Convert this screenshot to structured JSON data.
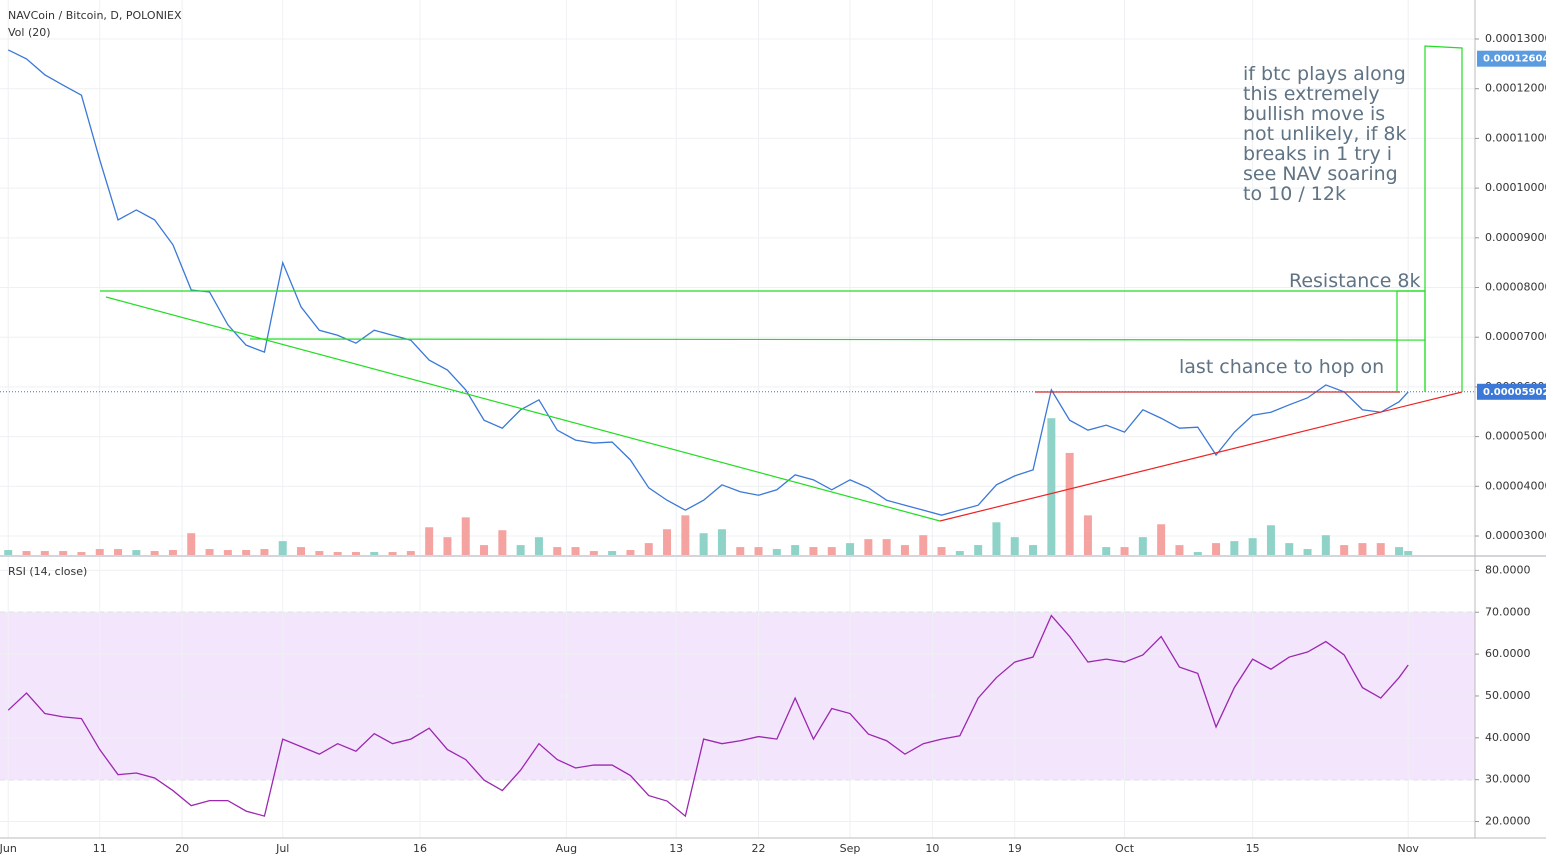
{
  "chart_data": [
    {
      "type": "line",
      "title": "NAVCoin / Bitcoin, D, POLONIEX",
      "color": "#3b78d8",
      "x": [
        0,
        2,
        4,
        6,
        8,
        10,
        12,
        14,
        16,
        18,
        20,
        22,
        24,
        26,
        28,
        30,
        32,
        34,
        36,
        38,
        40,
        42,
        44,
        46,
        48,
        50,
        52,
        54,
        56,
        58,
        60,
        62,
        64,
        66,
        68,
        70,
        72,
        74,
        76,
        78,
        80,
        82,
        84,
        86,
        88,
        90,
        92,
        94,
        96,
        98,
        100,
        102,
        104,
        106,
        108,
        110,
        112,
        114,
        116,
        118,
        120,
        122,
        124,
        126,
        128,
        130,
        132,
        134,
        136,
        138,
        140,
        142,
        144,
        146,
        148,
        150,
        152,
        153
      ],
      "values": [
        0.0001278,
        0.000126,
        0.0001228,
        0.0001207,
        0.0001187,
        0.0001057,
        9.36e-05,
        9.56e-05,
        9.36e-05,
        8.86e-05,
        7.95e-05,
        7.91e-05,
        7.25e-05,
        6.84e-05,
        6.7e-05,
        8.5e-05,
        7.61e-05,
        7.14e-05,
        7.04e-05,
        6.88e-05,
        7.14e-05,
        7.04e-05,
        6.94e-05,
        6.54e-05,
        6.34e-05,
        5.94e-05,
        5.33e-05,
        5.17e-05,
        5.54e-05,
        5.74e-05,
        5.13e-05,
        4.93e-05,
        4.87e-05,
        4.89e-05,
        4.53e-05,
        3.97e-05,
        3.72e-05,
        3.52e-05,
        3.72e-05,
        4.03e-05,
        3.89e-05,
        3.82e-05,
        3.93e-05,
        4.23e-05,
        4.13e-05,
        3.93e-05,
        4.13e-05,
        3.97e-05,
        3.72e-05,
        3.62e-05,
        3.52e-05,
        3.42e-05,
        3.52e-05,
        3.62e-05,
        4.03e-05,
        4.21e-05,
        4.33e-05,
        5.94e-05,
        5.33e-05,
        5.13e-05,
        5.23e-05,
        5.09e-05,
        5.54e-05,
        5.37e-05,
        5.17e-05,
        5.19e-05,
        4.63e-05,
        5.09e-05,
        5.43e-05,
        5.49e-05,
        5.64e-05,
        5.78e-05,
        6.04e-05,
        5.9e-05,
        5.54e-05,
        5.49e-05,
        5.7e-05,
        5.9e-05
      ],
      "xlim": [
        -0.9,
        160.3
      ],
      "xticks": [
        {
          "value": 0,
          "label": "Jun"
        },
        {
          "value": 10,
          "label": "11"
        },
        {
          "value": 19,
          "label": "20"
        },
        {
          "value": 30,
          "label": "Jul"
        },
        {
          "value": 45,
          "label": "16"
        },
        {
          "value": 61,
          "label": "Aug"
        },
        {
          "value": 73,
          "label": "13"
        },
        {
          "value": 82,
          "label": "22"
        },
        {
          "value": 92,
          "label": "Sep"
        },
        {
          "value": 101,
          "label": "10"
        },
        {
          "value": 110,
          "label": "19"
        },
        {
          "value": 122,
          "label": "Oct"
        },
        {
          "value": 136,
          "label": "15"
        },
        {
          "value": 153,
          "label": "Nov"
        }
      ],
      "ylim": [
        2.618e-05,
        0.00013785
      ],
      "yticks": [
        {
          "value": 3e-05,
          "label": "0.00003000"
        },
        {
          "value": 4e-05,
          "label": "0.00004000"
        },
        {
          "value": 5e-05,
          "label": "0.00005000"
        },
        {
          "value": 6e-05,
          "label": "0.00006000"
        },
        {
          "value": 7e-05,
          "label": "0.00007000"
        },
        {
          "value": 8e-05,
          "label": "0.00008000"
        },
        {
          "value": 9e-05,
          "label": "0.00009000"
        },
        {
          "value": 0.0001,
          "label": "0.00010000"
        },
        {
          "value": 0.00011,
          "label": "0.00011000"
        },
        {
          "value": 0.00012,
          "label": "0.00012000"
        },
        {
          "value": 0.00013,
          "label": "0.00013000"
        }
      ],
      "grid": true,
      "price_labels": [
        {
          "value": 0.00012604,
          "label": "0.00012604",
          "color": "#5b9be0"
        },
        {
          "value": 5.902e-05,
          "label": "0.00005902",
          "color": "#3b78d8"
        }
      ],
      "volume": {
        "label": "Vol (20)",
        "up_color": "#8fd3c8",
        "down_color": "#f5a3a0",
        "ylim": [
          0,
          560
        ],
        "values": [
          5,
          4,
          4,
          4,
          3,
          6,
          6,
          5,
          4,
          5,
          22,
          6,
          5,
          5,
          6,
          14,
          8,
          4,
          3,
          3,
          3,
          3,
          4,
          28,
          18,
          38,
          10,
          25,
          10,
          18,
          8,
          8,
          4,
          4,
          5,
          12,
          26,
          40,
          22,
          26,
          8,
          8,
          6,
          10,
          8,
          8,
          12,
          16,
          16,
          10,
          20,
          8,
          4,
          10,
          33,
          18,
          10,
          138,
          103,
          40,
          8,
          8,
          18,
          31,
          10,
          3,
          12,
          14,
          17,
          30,
          12,
          6,
          20,
          10,
          12,
          12,
          8,
          4
        ]
      },
      "annotations": {
        "note": [
          "if btc plays along",
          "this extremely",
          "bullish move is",
          "not unlikely, if 8k",
          "breaks in 1 try i",
          "see NAV soaring",
          "to 10 / 12k"
        ],
        "resistance": "Resistance 8k",
        "hop_on": "last chance to hop on"
      }
    },
    {
      "type": "line",
      "title": "RSI (14, close)",
      "color": "#9c27b0",
      "x": [
        0,
        2,
        4,
        6,
        8,
        10,
        12,
        14,
        16,
        18,
        20,
        22,
        24,
        26,
        28,
        30,
        32,
        34,
        36,
        38,
        40,
        42,
        44,
        46,
        48,
        50,
        52,
        54,
        56,
        58,
        60,
        62,
        64,
        66,
        68,
        70,
        72,
        74,
        76,
        78,
        80,
        82,
        84,
        86,
        88,
        90,
        92,
        94,
        96,
        98,
        100,
        102,
        104,
        106,
        108,
        110,
        112,
        114,
        116,
        118,
        120,
        122,
        124,
        126,
        128,
        130,
        132,
        134,
        136,
        138,
        140,
        142,
        144,
        146,
        148,
        150,
        152,
        153
      ],
      "values": [
        46.6,
        50.7,
        45.8,
        45,
        44.6,
        37.2,
        31.2,
        31.6,
        30.4,
        27.4,
        23.8,
        25,
        25,
        22.5,
        21.3,
        39.7,
        37.9,
        36.1,
        38.6,
        36.8,
        41,
        38.6,
        39.7,
        42.3,
        37.2,
        34.8,
        29.9,
        27.4,
        32.3,
        38.6,
        34.8,
        32.8,
        33.5,
        33.5,
        31,
        26.2,
        24.9,
        21.3,
        39.7,
        38.6,
        39.3,
        40.3,
        39.7,
        49.5,
        39.7,
        47,
        45.8,
        40.9,
        39.3,
        36.1,
        38.6,
        39.7,
        40.5,
        49.5,
        54.4,
        58.1,
        59.3,
        69.2,
        64.2,
        58.1,
        58.8,
        58.1,
        59.8,
        64.2,
        56.9,
        55.4,
        42.6,
        52,
        58.8,
        56.4,
        59.3,
        60.5,
        63,
        59.8,
        52,
        49.5,
        54.4,
        57.4
      ],
      "ylim": [
        16.07,
        83.2
      ],
      "yticks": [
        {
          "value": 20,
          "label": "20.0000"
        },
        {
          "value": 30,
          "label": "30.0000"
        },
        {
          "value": 40,
          "label": "40.0000"
        },
        {
          "value": 50,
          "label": "50.0000"
        },
        {
          "value": 60,
          "label": "60.0000"
        },
        {
          "value": 70,
          "label": "70.0000"
        },
        {
          "value": 80,
          "label": "80.0000"
        }
      ],
      "band": [
        30,
        70
      ],
      "band_color": "#f3e5fc"
    }
  ]
}
